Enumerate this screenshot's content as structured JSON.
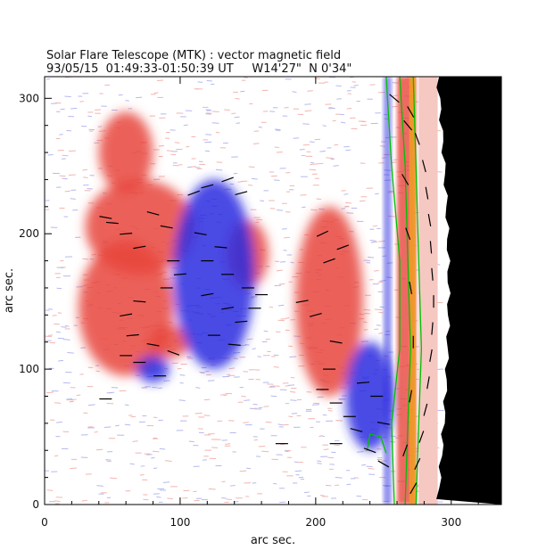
{
  "chart_data": {
    "type": "heatmap",
    "title": "Solar Flare Telescope (MTK) : vector magnetic field",
    "subtitle": "93/05/15  01:49:33-01:50:39 UT     W14'27\"  N 0'34\"",
    "xlabel": "arc sec.",
    "ylabel": "arc sec.",
    "xlim": [
      0,
      337
    ],
    "ylim": [
      0,
      316
    ],
    "xticks": [
      0,
      100,
      200,
      300
    ],
    "yticks": [
      0,
      100,
      200,
      300
    ],
    "colors": {
      "positive_polarity": "#e8453c",
      "negative_polarity": "#2a2ae0",
      "background_noise_positive": "#f2b5b0",
      "background_noise_negative": "#b5b9ef",
      "contour": "#00c000",
      "limb_region": "#000000",
      "vector": "#000000"
    },
    "regions": [
      {
        "polarity": "positive",
        "center": [
          70,
          205
        ],
        "radius": [
          40,
          35
        ]
      },
      {
        "polarity": "positive",
        "center": [
          60,
          145
        ],
        "radius": [
          35,
          50
        ]
      },
      {
        "polarity": "positive",
        "center": [
          92,
          120
        ],
        "radius": [
          15,
          12
        ]
      },
      {
        "polarity": "positive",
        "center": [
          150,
          185
        ],
        "radius": [
          15,
          25
        ]
      },
      {
        "polarity": "positive",
        "center": [
          210,
          150
        ],
        "radius": [
          25,
          70
        ]
      },
      {
        "polarity": "positive",
        "center": [
          60,
          260
        ],
        "radius": [
          20,
          30
        ]
      },
      {
        "polarity": "negative",
        "center": [
          125,
          170
        ],
        "radius": [
          30,
          70
        ]
      },
      {
        "polarity": "negative",
        "center": [
          240,
          80
        ],
        "radius": [
          18,
          40
        ]
      },
      {
        "polarity": "negative",
        "center": [
          80,
          100
        ],
        "radius": [
          12,
          10
        ]
      }
    ],
    "limb_x_start": 290,
    "contours": [
      {
        "points": [
          [
            252,
            316
          ],
          [
            256,
            250
          ],
          [
            262,
            180
          ],
          [
            262,
            115
          ],
          [
            256,
            60
          ],
          [
            258,
            0
          ]
        ]
      },
      {
        "points": [
          [
            262,
            316
          ],
          [
            266,
            250
          ],
          [
            268,
            180
          ],
          [
            270,
            115
          ],
          [
            268,
            60
          ],
          [
            266,
            0
          ]
        ]
      },
      {
        "points": [
          [
            272,
            316
          ],
          [
            274,
            250
          ],
          [
            276,
            180
          ],
          [
            278,
            115
          ],
          [
            276,
            60
          ],
          [
            274,
            0
          ]
        ]
      },
      {
        "points": [
          [
            238,
            40
          ],
          [
            240,
            52
          ],
          [
            248,
            50
          ],
          [
            252,
            38
          ]
        ]
      }
    ],
    "vectors": [
      {
        "x": 45,
        "y": 212,
        "angle": -10
      },
      {
        "x": 50,
        "y": 208,
        "angle": -5
      },
      {
        "x": 60,
        "y": 200,
        "angle": 5
      },
      {
        "x": 70,
        "y": 190,
        "angle": 10
      },
      {
        "x": 80,
        "y": 215,
        "angle": -15
      },
      {
        "x": 90,
        "y": 205,
        "angle": -10
      },
      {
        "x": 95,
        "y": 180,
        "angle": 0
      },
      {
        "x": 100,
        "y": 170,
        "angle": 5
      },
      {
        "x": 90,
        "y": 160,
        "angle": 0
      },
      {
        "x": 70,
        "y": 150,
        "angle": -5
      },
      {
        "x": 60,
        "y": 140,
        "angle": 10
      },
      {
        "x": 65,
        "y": 125,
        "angle": 5
      },
      {
        "x": 80,
        "y": 118,
        "angle": -10
      },
      {
        "x": 95,
        "y": 112,
        "angle": -20
      },
      {
        "x": 60,
        "y": 110,
        "angle": 0
      },
      {
        "x": 70,
        "y": 105,
        "angle": 0
      },
      {
        "x": 85,
        "y": 95,
        "angle": 0
      },
      {
        "x": 45,
        "y": 78,
        "angle": 0
      },
      {
        "x": 110,
        "y": 230,
        "angle": 20
      },
      {
        "x": 120,
        "y": 235,
        "angle": 15
      },
      {
        "x": 135,
        "y": 240,
        "angle": 20
      },
      {
        "x": 145,
        "y": 230,
        "angle": 15
      },
      {
        "x": 115,
        "y": 200,
        "angle": -10
      },
      {
        "x": 130,
        "y": 190,
        "angle": -5
      },
      {
        "x": 120,
        "y": 180,
        "angle": 0
      },
      {
        "x": 135,
        "y": 170,
        "angle": 0
      },
      {
        "x": 150,
        "y": 160,
        "angle": 0
      },
      {
        "x": 160,
        "y": 155,
        "angle": 0
      },
      {
        "x": 120,
        "y": 155,
        "angle": 10
      },
      {
        "x": 135,
        "y": 145,
        "angle": 10
      },
      {
        "x": 145,
        "y": 135,
        "angle": 5
      },
      {
        "x": 125,
        "y": 125,
        "angle": 0
      },
      {
        "x": 140,
        "y": 118,
        "angle": -5
      },
      {
        "x": 155,
        "y": 145,
        "angle": 0
      },
      {
        "x": 190,
        "y": 150,
        "angle": 10
      },
      {
        "x": 200,
        "y": 140,
        "angle": 15
      },
      {
        "x": 210,
        "y": 180,
        "angle": 20
      },
      {
        "x": 220,
        "y": 190,
        "angle": 20
      },
      {
        "x": 205,
        "y": 200,
        "angle": 25
      },
      {
        "x": 215,
        "y": 120,
        "angle": -10
      },
      {
        "x": 210,
        "y": 100,
        "angle": 0
      },
      {
        "x": 205,
        "y": 85,
        "angle": 0
      },
      {
        "x": 215,
        "y": 75,
        "angle": 0
      },
      {
        "x": 225,
        "y": 65,
        "angle": 0
      },
      {
        "x": 235,
        "y": 90,
        "angle": 5
      },
      {
        "x": 245,
        "y": 80,
        "angle": 0
      },
      {
        "x": 250,
        "y": 60,
        "angle": -10
      },
      {
        "x": 230,
        "y": 55,
        "angle": -15
      },
      {
        "x": 240,
        "y": 40,
        "angle": -20
      },
      {
        "x": 250,
        "y": 30,
        "angle": -30
      },
      {
        "x": 175,
        "y": 45,
        "angle": 0
      },
      {
        "x": 215,
        "y": 45,
        "angle": 0
      },
      {
        "x": 258,
        "y": 300,
        "angle": -40
      },
      {
        "x": 270,
        "y": 290,
        "angle": -60
      },
      {
        "x": 275,
        "y": 270,
        "angle": -70
      },
      {
        "x": 280,
        "y": 250,
        "angle": -75
      },
      {
        "x": 282,
        "y": 230,
        "angle": -80
      },
      {
        "x": 284,
        "y": 210,
        "angle": -80
      },
      {
        "x": 285,
        "y": 190,
        "angle": -85
      },
      {
        "x": 286,
        "y": 170,
        "angle": -85
      },
      {
        "x": 287,
        "y": 150,
        "angle": -90
      },
      {
        "x": 286,
        "y": 130,
        "angle": -95
      },
      {
        "x": 285,
        "y": 110,
        "angle": -100
      },
      {
        "x": 283,
        "y": 90,
        "angle": -100
      },
      {
        "x": 281,
        "y": 70,
        "angle": -105
      },
      {
        "x": 278,
        "y": 50,
        "angle": -110
      },
      {
        "x": 275,
        "y": 30,
        "angle": -115
      },
      {
        "x": 272,
        "y": 12,
        "angle": -120
      },
      {
        "x": 268,
        "y": 280,
        "angle": -50
      },
      {
        "x": 266,
        "y": 240,
        "angle": -60
      },
      {
        "x": 268,
        "y": 200,
        "angle": -70
      },
      {
        "x": 270,
        "y": 160,
        "angle": -80
      },
      {
        "x": 272,
        "y": 120,
        "angle": -90
      },
      {
        "x": 270,
        "y": 80,
        "angle": -100
      },
      {
        "x": 266,
        "y": 40,
        "angle": -110
      }
    ]
  }
}
